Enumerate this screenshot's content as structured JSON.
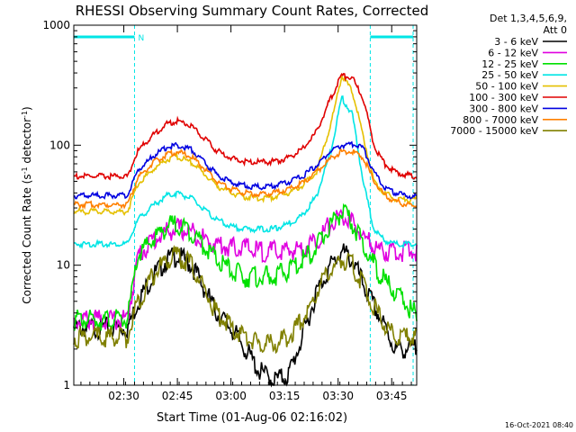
{
  "chart_data": {
    "type": "line",
    "title": "RHESSI Observing Summary Count Rates, Corrected",
    "ylabel_pre": "Corrected Count Rate (s",
    "ylabel_sup": "-1",
    "ylabel_post": " detector",
    "ylabel_sup2": "-1",
    "ylabel_end": ")",
    "xlabel": "Start Time (01-Aug-06 02:16:02)",
    "footer": "16-Oct-2021 08:40",
    "yscale": "log",
    "ylim": [
      1,
      1000
    ],
    "xlim_min": [
      0,
      130
    ],
    "yticks": [
      {
        "v": 1,
        "label": "1"
      },
      {
        "v": 10,
        "label": "10"
      },
      {
        "v": 100,
        "label": "100"
      },
      {
        "v": 1000,
        "label": "1000"
      }
    ],
    "xticks": [
      {
        "t": 14,
        "label": "02:30"
      },
      {
        "t": 29,
        "label": "02:45"
      },
      {
        "t": 44,
        "label": "03:00"
      },
      {
        "t": 59,
        "label": "03:15"
      },
      {
        "t": 74,
        "label": "03:30"
      },
      {
        "t": 89,
        "label": "03:45"
      }
    ],
    "legend_header": [
      "Det 1,3,4,5,6,9,",
      "Att 0"
    ],
    "night_marker": "N",
    "night_intervals": [
      [
        0,
        17
      ],
      [
        83,
        95
      ]
    ],
    "series": [
      {
        "name": "3 - 6 keV",
        "color": "#000000",
        "points": [
          [
            0,
            3
          ],
          [
            6,
            3
          ],
          [
            12,
            3
          ],
          [
            15,
            3
          ],
          [
            18,
            5
          ],
          [
            22,
            8
          ],
          [
            26,
            11
          ],
          [
            29,
            12
          ],
          [
            33,
            10
          ],
          [
            37,
            6
          ],
          [
            40,
            4
          ],
          [
            44,
            3
          ],
          [
            48,
            2
          ],
          [
            52,
            1.3
          ],
          [
            56,
            1.1
          ],
          [
            60,
            1.2
          ],
          [
            64,
            2.5
          ],
          [
            68,
            6
          ],
          [
            72,
            10
          ],
          [
            75,
            13
          ],
          [
            78,
            11
          ],
          [
            82,
            6
          ],
          [
            86,
            3.5
          ],
          [
            90,
            2
          ],
          [
            95,
            2
          ]
        ]
      },
      {
        "name": "6 - 12 keV",
        "color": "#e000e0",
        "points": [
          [
            0,
            3.5
          ],
          [
            6,
            3.5
          ],
          [
            12,
            3.5
          ],
          [
            15,
            3.5
          ],
          [
            18,
            12
          ],
          [
            22,
            16
          ],
          [
            26,
            19
          ],
          [
            29,
            20
          ],
          [
            33,
            19
          ],
          [
            37,
            16
          ],
          [
            40,
            15
          ],
          [
            44,
            14
          ],
          [
            48,
            14
          ],
          [
            52,
            13
          ],
          [
            56,
            13
          ],
          [
            60,
            13
          ],
          [
            64,
            14
          ],
          [
            68,
            16
          ],
          [
            72,
            22
          ],
          [
            75,
            26
          ],
          [
            78,
            22
          ],
          [
            82,
            16
          ],
          [
            86,
            13
          ],
          [
            90,
            13
          ],
          [
            95,
            13
          ]
        ]
      },
      {
        "name": "12 - 25 keV",
        "color": "#00e000",
        "points": [
          [
            0,
            3.5
          ],
          [
            6,
            3.5
          ],
          [
            12,
            3.5
          ],
          [
            15,
            3.5
          ],
          [
            18,
            12
          ],
          [
            22,
            16
          ],
          [
            26,
            21
          ],
          [
            29,
            22
          ],
          [
            33,
            19
          ],
          [
            37,
            14
          ],
          [
            40,
            11
          ],
          [
            44,
            9
          ],
          [
            48,
            8
          ],
          [
            52,
            8
          ],
          [
            56,
            8
          ],
          [
            60,
            9
          ],
          [
            64,
            11
          ],
          [
            68,
            14
          ],
          [
            72,
            22
          ],
          [
            75,
            28
          ],
          [
            78,
            22
          ],
          [
            82,
            13
          ],
          [
            86,
            8
          ],
          [
            90,
            6
          ],
          [
            95,
            4
          ]
        ]
      },
      {
        "name": "25 - 50 keV",
        "color": "#00e5e5",
        "points": [
          [
            0,
            15
          ],
          [
            6,
            15
          ],
          [
            12,
            15
          ],
          [
            15,
            15
          ],
          [
            18,
            24
          ],
          [
            22,
            31
          ],
          [
            26,
            38
          ],
          [
            29,
            40
          ],
          [
            33,
            36
          ],
          [
            37,
            28
          ],
          [
            40,
            24
          ],
          [
            44,
            21
          ],
          [
            48,
            20
          ],
          [
            52,
            20
          ],
          [
            56,
            20
          ],
          [
            60,
            22
          ],
          [
            64,
            26
          ],
          [
            68,
            38
          ],
          [
            72,
            90
          ],
          [
            75,
            250
          ],
          [
            78,
            180
          ],
          [
            81,
            50
          ],
          [
            84,
            20
          ],
          [
            87,
            16
          ],
          [
            90,
            15
          ],
          [
            95,
            15
          ]
        ]
      },
      {
        "name": "50 - 100 keV",
        "color": "#e5c000",
        "points": [
          [
            0,
            28
          ],
          [
            6,
            28
          ],
          [
            12,
            28
          ],
          [
            15,
            28
          ],
          [
            18,
            48
          ],
          [
            22,
            62
          ],
          [
            26,
            76
          ],
          [
            29,
            80
          ],
          [
            33,
            72
          ],
          [
            37,
            56
          ],
          [
            40,
            46
          ],
          [
            44,
            40
          ],
          [
            48,
            37
          ],
          [
            52,
            36
          ],
          [
            56,
            37
          ],
          [
            60,
            40
          ],
          [
            64,
            46
          ],
          [
            68,
            60
          ],
          [
            72,
            150
          ],
          [
            75,
            380
          ],
          [
            78,
            280
          ],
          [
            81,
            120
          ],
          [
            84,
            50
          ],
          [
            87,
            40
          ],
          [
            90,
            36
          ],
          [
            95,
            35
          ]
        ]
      },
      {
        "name": "100 - 300 keV",
        "color": "#e00000",
        "points": [
          [
            0,
            55
          ],
          [
            6,
            55
          ],
          [
            12,
            55
          ],
          [
            15,
            55
          ],
          [
            18,
            90
          ],
          [
            22,
            120
          ],
          [
            26,
            150
          ],
          [
            29,
            160
          ],
          [
            33,
            145
          ],
          [
            37,
            110
          ],
          [
            40,
            90
          ],
          [
            44,
            78
          ],
          [
            48,
            73
          ],
          [
            52,
            72
          ],
          [
            56,
            73
          ],
          [
            60,
            78
          ],
          [
            64,
            92
          ],
          [
            68,
            130
          ],
          [
            72,
            250
          ],
          [
            75,
            380
          ],
          [
            78,
            360
          ],
          [
            81,
            250
          ],
          [
            84,
            100
          ],
          [
            87,
            70
          ],
          [
            90,
            60
          ],
          [
            95,
            55
          ]
        ]
      },
      {
        "name": "300 - 800 keV",
        "color": "#0000e0",
        "points": [
          [
            0,
            38
          ],
          [
            6,
            38
          ],
          [
            12,
            38
          ],
          [
            15,
            38
          ],
          [
            18,
            62
          ],
          [
            22,
            80
          ],
          [
            26,
            96
          ],
          [
            29,
            100
          ],
          [
            33,
            92
          ],
          [
            37,
            70
          ],
          [
            40,
            57
          ],
          [
            44,
            49
          ],
          [
            48,
            46
          ],
          [
            52,
            45
          ],
          [
            56,
            46
          ],
          [
            60,
            49
          ],
          [
            64,
            55
          ],
          [
            68,
            68
          ],
          [
            72,
            90
          ],
          [
            75,
            100
          ],
          [
            78,
            102
          ],
          [
            81,
            95
          ],
          [
            84,
            60
          ],
          [
            87,
            45
          ],
          [
            90,
            40
          ],
          [
            95,
            37
          ]
        ]
      },
      {
        "name": "800 - 7000 keV",
        "color": "#ff8000",
        "points": [
          [
            0,
            32
          ],
          [
            6,
            32
          ],
          [
            12,
            32
          ],
          [
            15,
            32
          ],
          [
            18,
            54
          ],
          [
            22,
            70
          ],
          [
            26,
            84
          ],
          [
            29,
            88
          ],
          [
            33,
            80
          ],
          [
            37,
            62
          ],
          [
            40,
            50
          ],
          [
            44,
            43
          ],
          [
            48,
            40
          ],
          [
            52,
            39
          ],
          [
            56,
            40
          ],
          [
            60,
            43
          ],
          [
            64,
            48
          ],
          [
            68,
            60
          ],
          [
            72,
            78
          ],
          [
            75,
            88
          ],
          [
            78,
            88
          ],
          [
            81,
            80
          ],
          [
            84,
            50
          ],
          [
            87,
            38
          ],
          [
            90,
            34
          ],
          [
            95,
            31
          ]
        ]
      },
      {
        "name": "7000 - 15000 keV",
        "color": "#808000",
        "points": [
          [
            0,
            2.5
          ],
          [
            6,
            2.5
          ],
          [
            12,
            2.5
          ],
          [
            15,
            2.5
          ],
          [
            18,
            5
          ],
          [
            22,
            8
          ],
          [
            26,
            11
          ],
          [
            29,
            12
          ],
          [
            33,
            10
          ],
          [
            37,
            6
          ],
          [
            40,
            4
          ],
          [
            44,
            3
          ],
          [
            48,
            2.5
          ],
          [
            52,
            2.2
          ],
          [
            56,
            2.2
          ],
          [
            60,
            2.5
          ],
          [
            64,
            3.5
          ],
          [
            68,
            6
          ],
          [
            72,
            9
          ],
          [
            75,
            11
          ],
          [
            78,
            10
          ],
          [
            82,
            6
          ],
          [
            86,
            3.5
          ],
          [
            90,
            2.5
          ],
          [
            95,
            2.5
          ]
        ]
      }
    ]
  }
}
